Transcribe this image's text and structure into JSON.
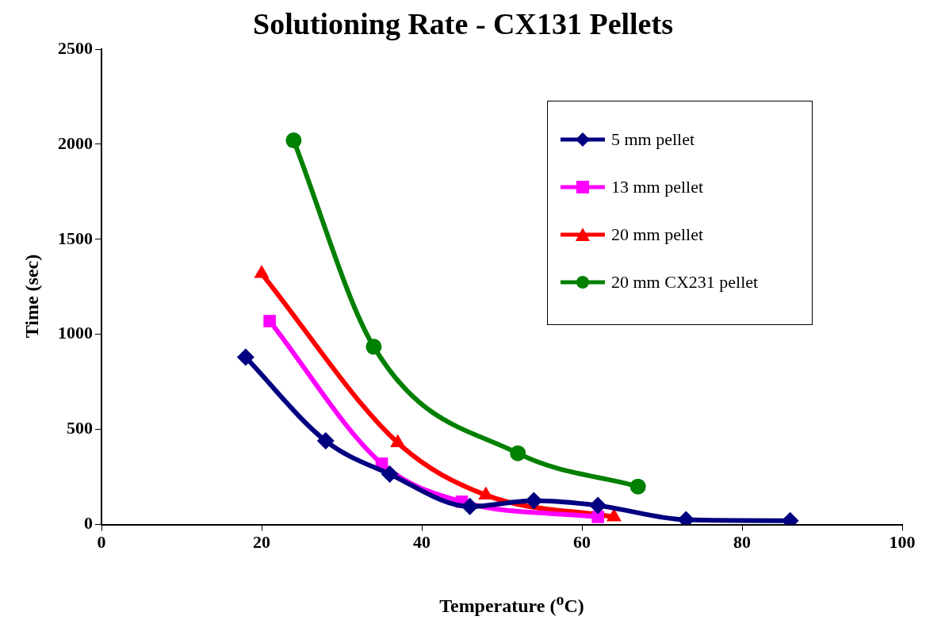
{
  "chart_data": {
    "type": "line",
    "title": "Solutioning Rate - CX131 Pellets",
    "xlabel": "Temperature ($^{o}$C)",
    "ylabel": "Time (sec)",
    "xlim": [
      0,
      100
    ],
    "xticks": [
      0,
      20,
      40,
      60,
      80,
      100
    ],
    "ylim": [
      0,
      2500
    ],
    "yticks": [
      0,
      500,
      1000,
      1500,
      2000,
      2500
    ],
    "grid": false,
    "legend": "top right",
    "series": [
      {
        "name": "5 mm pellet",
        "color": "#000080",
        "marker": "diamond",
        "x": [
          18,
          28,
          36,
          46,
          54,
          62,
          73,
          86
        ],
        "values": [
          880,
          440,
          265,
          95,
          125,
          100,
          25,
          20
        ]
      },
      {
        "name": "13 mm pellet",
        "color": "#ff00ff",
        "marker": "square",
        "x": [
          21,
          35,
          45,
          62
        ],
        "values": [
          1070,
          320,
          120,
          40
        ]
      },
      {
        "name": "20 mm pellet",
        "color": "#ff0000",
        "marker": "triangle",
        "x": [
          20,
          37,
          48,
          64
        ],
        "values": [
          1320,
          430,
          155,
          40
        ]
      },
      {
        "name": "20 mm CX231 pellet",
        "color": "#008000",
        "marker": "circle",
        "x": [
          24,
          34,
          52,
          67
        ],
        "values": [
          2020,
          935,
          375,
          200
        ]
      }
    ]
  }
}
